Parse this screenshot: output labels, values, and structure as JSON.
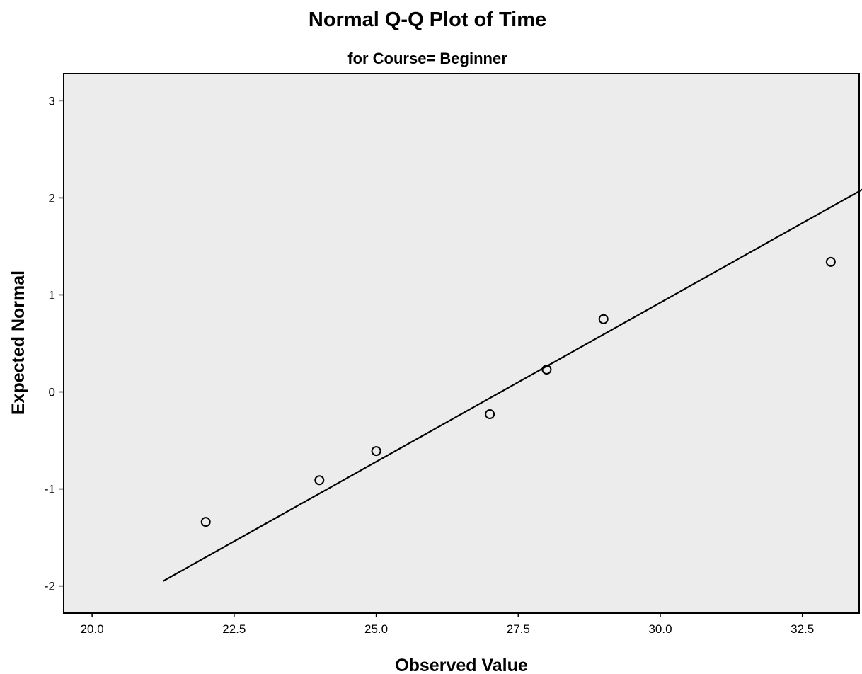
{
  "chart_data": {
    "type": "scatter",
    "title": "Normal Q-Q Plot of Time",
    "subtitle": "for Course= Beginner",
    "xlabel": "Observed Value",
    "ylabel": "Expected Normal",
    "xlim": [
      19.5,
      33.5
    ],
    "ylim": [
      -2.28,
      3.28
    ],
    "xticks": [
      20.0,
      22.5,
      25.0,
      27.5,
      30.0,
      32.5
    ],
    "xtick_labels": [
      "20.0",
      "22.5",
      "25.0",
      "27.5",
      "30.0",
      "32.5"
    ],
    "yticks": [
      -2,
      -1,
      0,
      1,
      2,
      3
    ],
    "ytick_labels": [
      "-2",
      "-1",
      "0",
      "1",
      "2",
      "3"
    ],
    "grid": false,
    "series": [
      {
        "points": [
          {
            "x": 22,
            "y": -1.34
          },
          {
            "x": 24,
            "y": -0.91
          },
          {
            "x": 25,
            "y": -0.61
          },
          {
            "x": 27,
            "y": -0.23
          },
          {
            "x": 28,
            "y": 0.23
          },
          {
            "x": 29,
            "y": 0.75
          },
          {
            "x": 33,
            "y": 1.34
          }
        ]
      }
    ],
    "reference_line": {
      "from": {
        "x": 21.25,
        "y": -1.95
      },
      "to": {
        "x": 33.75,
        "y": 2.15
      }
    },
    "colors": {
      "plot_background": "#ececec",
      "frame": "#000000",
      "marker": "#000000",
      "line": "#000000"
    }
  }
}
